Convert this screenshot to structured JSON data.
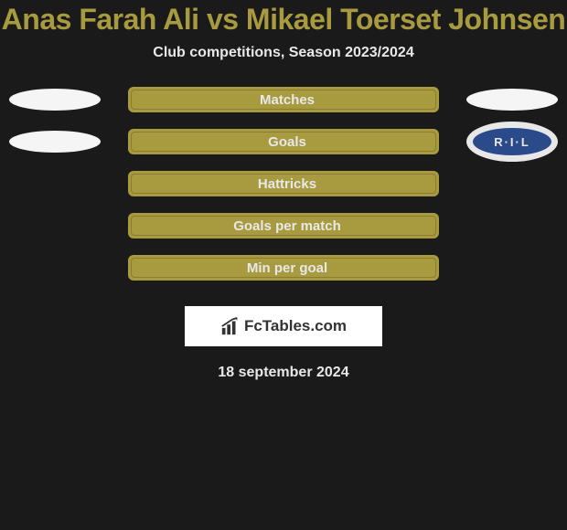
{
  "colors": {
    "page_bg": "#1a1a1a",
    "title_color": "#a89a3f",
    "subtitle_color": "#e8e8e8",
    "bar_bg": "#a89a3f",
    "bar_border": "#8a7d2e",
    "bar_text": "#e8e8e8",
    "badge_white": "#f5f5f5",
    "ril_outer": "#e8e8e8",
    "ril_inner": "#2a4a8a",
    "ril_text": "#e8e8e8",
    "logo_bg": "#ffffff",
    "logo_text": "#333333",
    "date_color": "#e8e8e8"
  },
  "title": "Anas Farah Ali vs Mikael Toerset Johnsen",
  "subtitle": "Club competitions, Season 2023/2024",
  "stats": [
    {
      "label": "Matches",
      "left_badge": "white",
      "right_badge": "white"
    },
    {
      "label": "Goals",
      "left_badge": "white",
      "right_badge": "ril"
    },
    {
      "label": "Hattricks",
      "left_badge": null,
      "right_badge": null
    },
    {
      "label": "Goals per match",
      "left_badge": null,
      "right_badge": null
    },
    {
      "label": "Min per goal",
      "left_badge": null,
      "right_badge": null
    }
  ],
  "ril_label": "R·I·L",
  "logo": {
    "brand": "FcTables",
    "suffix": ".com"
  },
  "date": "18 september 2024"
}
